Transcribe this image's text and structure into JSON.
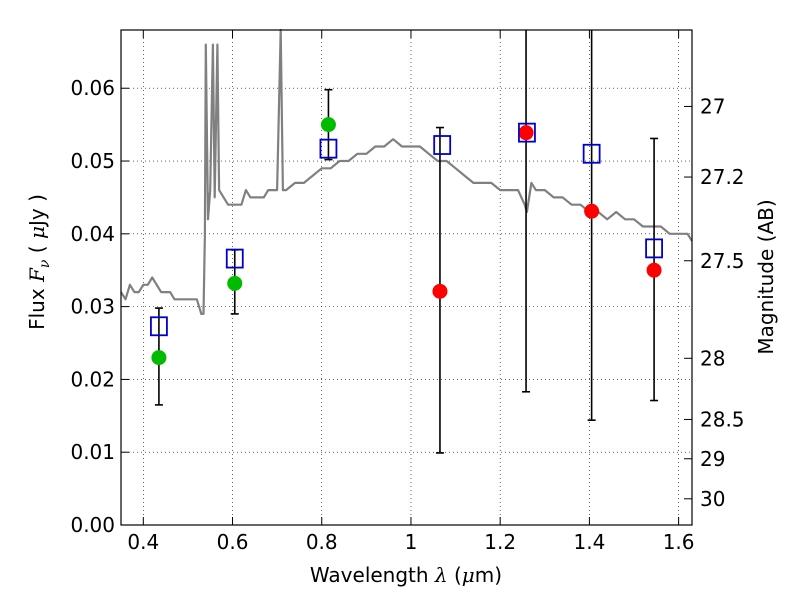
{
  "chart_data": {
    "type": "scatter",
    "xlabel": "Wavelength  λ (μm)",
    "ylabel": "Flux  F_ν  ( μJy )",
    "y2label": "Magnitude (AB)",
    "xlim": [
      0.35,
      1.63
    ],
    "ylim": [
      0.0,
      0.068
    ],
    "x_ticks": [
      0.4,
      0.6,
      0.8,
      1.0,
      1.2,
      1.4,
      1.6
    ],
    "x_tick_labels": [
      "0.4",
      "0.6",
      "0.8",
      "1",
      "1.2",
      "1.4",
      "1.6"
    ],
    "y_ticks": [
      0.0,
      0.01,
      0.02,
      0.03,
      0.04,
      0.05,
      0.06
    ],
    "y_tick_labels": [
      "0.00",
      "0.01",
      "0.02",
      "0.03",
      "0.04",
      "0.05",
      "0.06"
    ],
    "y2_ticks": [
      {
        "label": "27",
        "flux": 0.0575
      },
      {
        "label": "27.2",
        "flux": 0.0478
      },
      {
        "label": "27.5",
        "flux": 0.0363
      },
      {
        "label": "28",
        "flux": 0.0229
      },
      {
        "label": "28.5",
        "flux": 0.0145
      },
      {
        "label": "29",
        "flux": 0.0091
      },
      {
        "label": "30",
        "flux": 0.0036
      }
    ],
    "grid": true,
    "colors": {
      "spectrum": "#808080",
      "detections": "#00bb00",
      "upper_limits": "#ff0000",
      "model_boxes": "#0000cc",
      "error_bars": "#000000"
    },
    "spectrum": {
      "x": [
        0.35,
        0.36,
        0.37,
        0.38,
        0.39,
        0.4,
        0.41,
        0.42,
        0.43,
        0.44,
        0.45,
        0.46,
        0.47,
        0.48,
        0.49,
        0.5,
        0.51,
        0.52,
        0.525,
        0.53,
        0.535,
        0.538,
        0.54,
        0.545,
        0.55,
        0.556,
        0.56,
        0.566,
        0.57,
        0.58,
        0.59,
        0.6,
        0.61,
        0.62,
        0.63,
        0.64,
        0.65,
        0.66,
        0.67,
        0.68,
        0.69,
        0.7,
        0.708,
        0.713,
        0.72,
        0.74,
        0.76,
        0.78,
        0.8,
        0.82,
        0.84,
        0.86,
        0.88,
        0.9,
        0.92,
        0.94,
        0.96,
        0.98,
        1.0,
        1.02,
        1.04,
        1.06,
        1.08,
        1.1,
        1.12,
        1.14,
        1.16,
        1.18,
        1.2,
        1.22,
        1.24,
        1.255,
        1.26,
        1.27,
        1.28,
        1.3,
        1.32,
        1.34,
        1.36,
        1.38,
        1.4,
        1.42,
        1.44,
        1.46,
        1.48,
        1.5,
        1.52,
        1.54,
        1.56,
        1.58,
        1.6,
        1.62,
        1.63
      ],
      "y": [
        0.032,
        0.031,
        0.033,
        0.032,
        0.032,
        0.033,
        0.033,
        0.034,
        0.033,
        0.032,
        0.032,
        0.032,
        0.031,
        0.031,
        0.031,
        0.031,
        0.031,
        0.031,
        0.03,
        0.029,
        0.029,
        0.04,
        0.066,
        0.042,
        0.046,
        0.066,
        0.045,
        0.066,
        0.046,
        0.045,
        0.044,
        0.044,
        0.044,
        0.044,
        0.046,
        0.045,
        0.045,
        0.045,
        0.045,
        0.046,
        0.046,
        0.046,
        0.068,
        0.046,
        0.046,
        0.047,
        0.047,
        0.048,
        0.049,
        0.049,
        0.05,
        0.05,
        0.051,
        0.051,
        0.052,
        0.052,
        0.053,
        0.052,
        0.052,
        0.052,
        0.051,
        0.05,
        0.05,
        0.049,
        0.048,
        0.047,
        0.047,
        0.047,
        0.046,
        0.046,
        0.046,
        0.044,
        0.043,
        0.047,
        0.046,
        0.046,
        0.045,
        0.045,
        0.044,
        0.044,
        0.043,
        0.043,
        0.042,
        0.043,
        0.042,
        0.042,
        0.041,
        0.041,
        0.041,
        0.04,
        0.04,
        0.04,
        0.039
      ]
    },
    "series": [
      {
        "marker": "green-circle",
        "x": [
          0.435,
          0.605,
          0.815
        ],
        "y": [
          0.023,
          0.0332,
          0.055
        ],
        "err_low": [
          0.0165,
          0.029,
          0.0502
        ],
        "err_high": [
          0.0298,
          0.0378,
          0.0598
        ]
      },
      {
        "marker": "red-circle",
        "x": [
          1.065,
          1.258,
          1.405,
          1.545
        ],
        "y": [
          0.0321,
          0.0539,
          0.0431,
          0.035
        ],
        "err_low": [
          0.0099,
          0.0183,
          0.0144,
          0.0171
        ],
        "err_high": [
          0.0546,
          0.068,
          0.068,
          0.0531
        ]
      },
      {
        "marker": "blue-square",
        "x": [
          0.435,
          0.605,
          0.815,
          1.07,
          1.26,
          1.405,
          1.545
        ],
        "y": [
          0.0273,
          0.0366,
          0.0517,
          0.0522,
          0.0539,
          0.051,
          0.038
        ]
      }
    ]
  }
}
